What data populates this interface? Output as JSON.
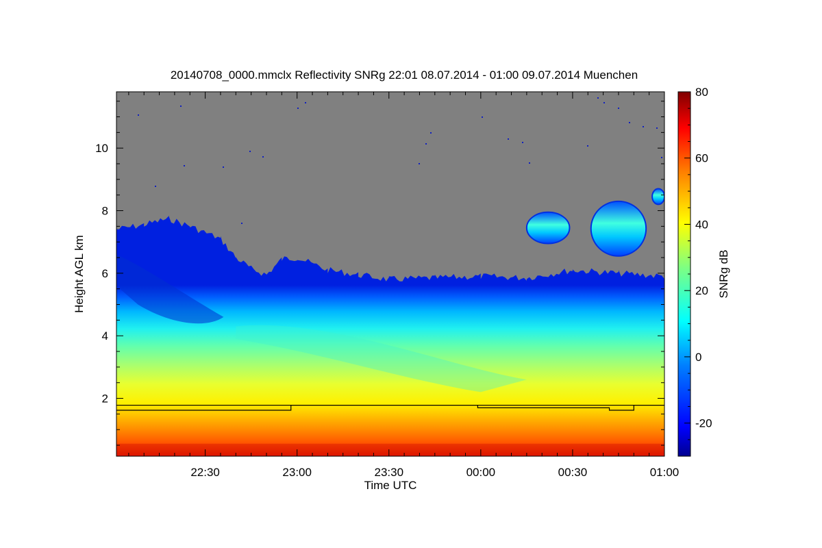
{
  "chart_data": {
    "type": "heatmap",
    "title": "20140708_0000.mmclx Reflectivity SNRg   22:01 08.07.2014 - 01:00 09.07.2014 Muenchen",
    "xlabel": "Time UTC",
    "ylabel": "Height AGL km",
    "colorbar_label": "SNRg dB",
    "x_range": [
      "22:01",
      "01:00"
    ],
    "x_ticks": [
      {
        "label": "22:30",
        "minutes_after_2200": 30
      },
      {
        "label": "23:00",
        "minutes_after_2200": 60
      },
      {
        "label": "23:30",
        "minutes_after_2200": 90
      },
      {
        "label": "00:00",
        "minutes_after_2200": 120
      },
      {
        "label": "00:30",
        "minutes_after_2200": 150
      },
      {
        "label": "01:00",
        "minutes_after_2200": 180
      }
    ],
    "y_range_km": [
      0.15,
      11.8
    ],
    "y_ticks": [
      "2",
      "4",
      "6",
      "8",
      "10"
    ],
    "colorbar_range_db": [
      -30,
      80
    ],
    "colorbar_ticks": [
      "-20",
      "0",
      "20",
      "40",
      "60",
      "80"
    ],
    "no_data_color": "#808080",
    "colormap": [
      "#00008f",
      "#0000ff",
      "#0080ff",
      "#00ffff",
      "#80ff80",
      "#ffff00",
      "#ff8000",
      "#ff0000",
      "#800000"
    ],
    "echo_top_km": [
      {
        "time": "22:01",
        "km": 7.4
      },
      {
        "time": "22:10",
        "km": 7.55
      },
      {
        "time": "22:18",
        "km": 7.75
      },
      {
        "time": "22:25",
        "km": 7.5
      },
      {
        "time": "22:35",
        "km": 7.1
      },
      {
        "time": "22:40",
        "km": 6.5
      },
      {
        "time": "22:45",
        "km": 6.15
      },
      {
        "time": "22:50",
        "km": 5.95
      },
      {
        "time": "22:55",
        "km": 6.45
      },
      {
        "time": "23:00",
        "km": 6.5
      },
      {
        "time": "23:10",
        "km": 6.1
      },
      {
        "time": "23:20",
        "km": 5.95
      },
      {
        "time": "23:30",
        "km": 5.8
      },
      {
        "time": "23:45",
        "km": 5.85
      },
      {
        "time": "00:00",
        "km": 5.9
      },
      {
        "time": "00:15",
        "km": 5.85
      },
      {
        "time": "00:30",
        "km": 6.1
      },
      {
        "time": "00:45",
        "km": 6.0
      },
      {
        "time": "01:00",
        "km": 5.9
      }
    ],
    "upper_cloud_patches": [
      {
        "start": "00:15",
        "end": "00:29",
        "base_km": 6.95,
        "top_km": 7.95
      },
      {
        "start": "00:36",
        "end": "00:54",
        "base_km": 6.55,
        "top_km": 8.3
      },
      {
        "start": "00:56",
        "end": "01:00",
        "base_km": 8.2,
        "top_km": 8.7
      }
    ],
    "bottom_lines_km": [
      {
        "name": "upper",
        "km": 1.78
      },
      {
        "name": "lower",
        "km": 1.62
      }
    ]
  }
}
